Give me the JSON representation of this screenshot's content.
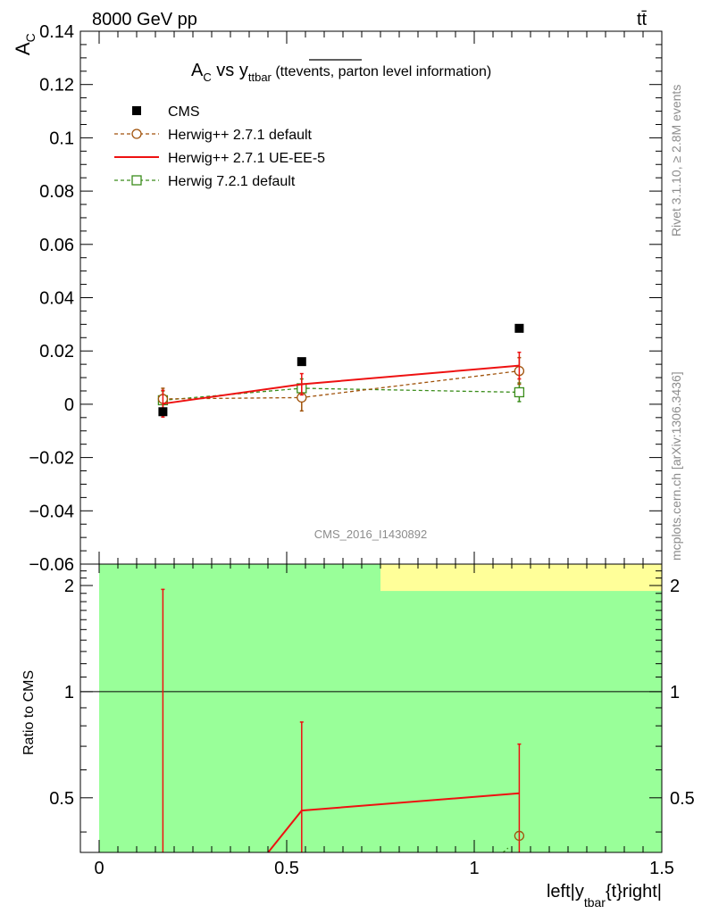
{
  "header": {
    "left": "8000 GeV pp",
    "right": "tt̄"
  },
  "title": {
    "main": "A",
    "main_sub": "C",
    "vs": " vs y",
    "vs_sub": "ttbar",
    "paren_open": " (tt",
    "overlined": "events,",
    "paren_rest": " parton level information)"
  },
  "side_labels": {
    "rivet": "Rivet 3.1.10, ≥ 2.8M events",
    "mcplots": "mcplots.cern.ch [arXiv:1306.3436]"
  },
  "analysis_id": "CMS_2016_I1430892",
  "colors": {
    "cms": "#000000",
    "herwig_pp_default": "#a0520a",
    "herwig_pp_ueee5": "#ee1111",
    "herwig7_default": "#3a8c1a",
    "band_green": "#99ff99",
    "band_yellow": "#ffff99"
  },
  "chart_data": [
    {
      "type": "scatter",
      "panel": "main",
      "ylabel": "A",
      "ylabel_sub": "C",
      "xlim": [
        -0.05,
        1.5
      ],
      "ylim": [
        -0.06,
        0.14
      ],
      "y_ticks": [
        -0.06,
        -0.04,
        -0.02,
        0,
        0.02,
        0.04,
        0.06,
        0.08,
        0.1,
        0.12,
        0.14
      ],
      "y_tick_labels": [
        "−0.06",
        "−0.04",
        "−0.02",
        "0",
        "0.02",
        "0.04",
        "0.06",
        "0.08",
        "0.1",
        "0.12",
        "0.14"
      ],
      "legend_position": "top-left",
      "series": [
        {
          "name": "CMS",
          "style": "marker-square",
          "x": [
            0.17,
            0.54,
            1.12
          ],
          "y": [
            -0.0028,
            0.016,
            0.0285
          ]
        },
        {
          "name": "Herwig++ 2.7.1 default",
          "style": "dashed-open-circle",
          "x": [
            0.17,
            0.54,
            1.12
          ],
          "y": [
            0.002,
            0.0025,
            0.0125
          ],
          "yerr": [
            0.004,
            0.005,
            0.005
          ]
        },
        {
          "name": "Herwig++ 2.7.1 UE-EE-5",
          "style": "solid-line",
          "x": [
            0.17,
            0.54,
            1.12
          ],
          "y": [
            0.0002,
            0.0075,
            0.0145
          ],
          "yerr": [
            0.005,
            0.004,
            0.005
          ]
        },
        {
          "name": "Herwig 7.2.1 default",
          "style": "dashed-open-square",
          "x": [
            0.17,
            0.54,
            1.12
          ],
          "y": [
            0.0015,
            0.006,
            0.0045
          ],
          "yerr": [
            0.0035,
            0.0035,
            0.0035
          ]
        }
      ]
    },
    {
      "type": "line",
      "panel": "ratio",
      "ylabel": "Ratio to CMS",
      "xlabel": "left|y",
      "xlabel_sub": "tbar",
      "xlabel_rest": "{t}right|",
      "xlim": [
        -0.05,
        1.5
      ],
      "ylim": [
        0.35,
        2.3
      ],
      "x_ticks": [
        0,
        0.5,
        1,
        1.5
      ],
      "x_tick_labels": [
        "0",
        "0.5",
        "1",
        "1.5"
      ],
      "y_ticks": [
        0.5,
        1,
        2
      ],
      "y_tick_labels": [
        "0.5",
        "1",
        "2"
      ],
      "reference_line": 1,
      "bands": [
        {
          "x0": 0,
          "x1": 1.5,
          "y0": 0.35,
          "y1": 2.3,
          "color": "green"
        },
        {
          "x0": 0.75,
          "x1": 1.5,
          "y0": 1.93,
          "y1": 2.3,
          "color": "yellow"
        }
      ],
      "series": [
        {
          "name": "Herwig++ 2.7.1 UE-EE-5",
          "x": [
            0.4,
            0.54,
            1.12
          ],
          "y": [
            0.3,
            0.46,
            0.515
          ]
        },
        {
          "name": "Herwig++ 2.7.1 default",
          "x": [
            1.12
          ],
          "y": [
            0.39
          ]
        }
      ],
      "error_bars": [
        {
          "x": 0.17,
          "y0": 0.35,
          "y1": 1.95
        },
        {
          "x": 0.54,
          "y0": 0.35,
          "y1": 0.82
        },
        {
          "x": 1.12,
          "y0": 0.35,
          "y1": 0.71
        }
      ]
    }
  ]
}
